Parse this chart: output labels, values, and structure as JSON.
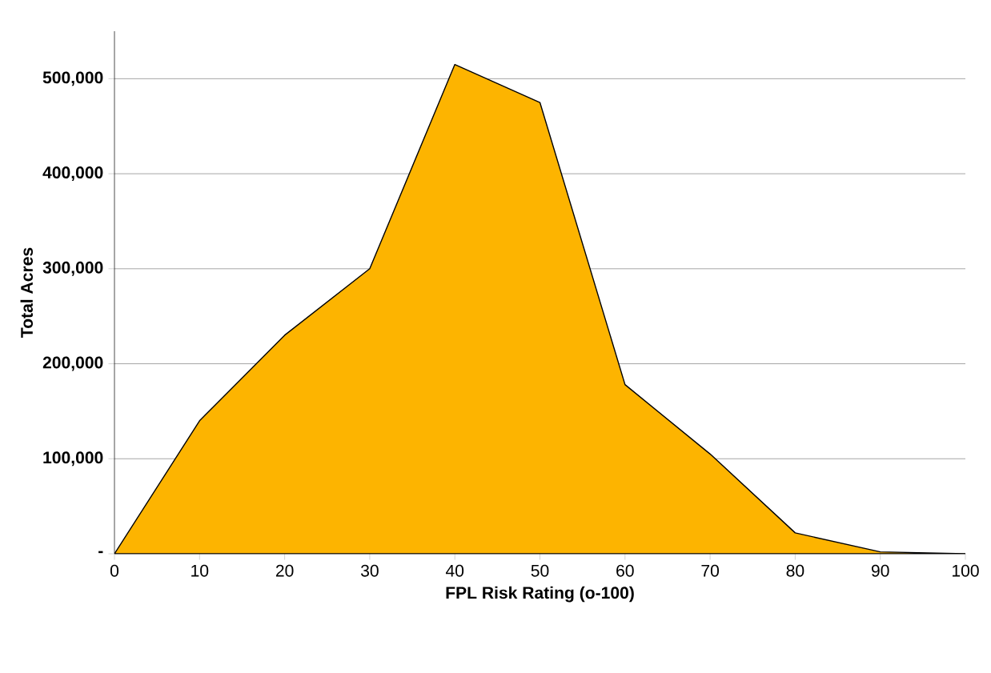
{
  "chart_data": {
    "type": "area",
    "xlabel": "FPL Risk Rating (o-100)",
    "ylabel": "Total Acres",
    "x": [
      0,
      10,
      20,
      30,
      40,
      50,
      60,
      70,
      80,
      90,
      100
    ],
    "series": [
      {
        "color": "#fdb400",
        "values": [
          0,
          140000,
          230000,
          300000,
          515000,
          475000,
          178000,
          105000,
          22000,
          2000,
          0
        ]
      }
    ],
    "xlim": [
      0,
      100
    ],
    "xticks": [
      0,
      10,
      20,
      30,
      40,
      50,
      60,
      70,
      80,
      90,
      100
    ],
    "ylim": [
      0,
      550000
    ],
    "yticks": [
      {
        "value": 0,
        "label": "-"
      },
      {
        "value": 100000,
        "label": "100,000"
      },
      {
        "value": 200000,
        "label": "200,000"
      },
      {
        "value": 300000,
        "label": "300,000"
      },
      {
        "value": 400000,
        "label": "400,000"
      },
      {
        "value": 500000,
        "label": "500,000"
      }
    ],
    "grid": "y"
  }
}
